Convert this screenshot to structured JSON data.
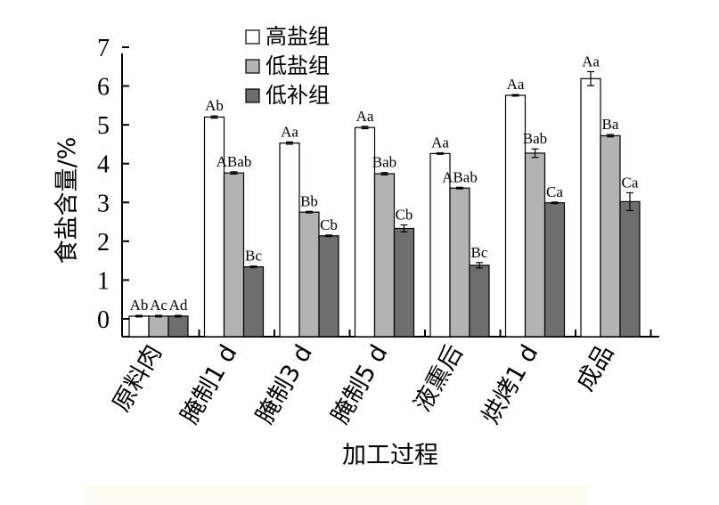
{
  "chart_data": {
    "type": "bar",
    "title": "",
    "xlabel": "加工过程",
    "ylabel": "食盐含量/%",
    "ylim": [
      0,
      7
    ],
    "yticks": [
      "0",
      "1",
      "2",
      "3",
      "4",
      "5",
      "6",
      "7"
    ],
    "categories": [
      "原料肉",
      "腌制1 d",
      "腌制3 d",
      "腌制5 d",
      "液熏后",
      "烘烤1 d",
      "成品"
    ],
    "series": [
      {
        "name": "高盐组",
        "color": "#ffffff",
        "values": [
          0.07,
          5.2,
          4.53,
          4.93,
          4.26,
          5.76,
          6.19
        ],
        "errors": [
          0.02,
          0.03,
          0.03,
          0.03,
          0.02,
          0.02,
          0.18
        ],
        "labels": [
          "Ab",
          "Ab",
          "Aa",
          "Aa",
          "Aa",
          "Aa",
          "Aa"
        ]
      },
      {
        "name": "低盐组",
        "color": "#b3b3b3",
        "values": [
          0.07,
          3.76,
          2.75,
          3.74,
          3.37,
          4.27,
          4.72
        ],
        "errors": [
          0.02,
          0.03,
          0.02,
          0.03,
          0.02,
          0.11,
          0.03
        ],
        "labels": [
          "Ac",
          "ABab",
          "Bb",
          "Bab",
          "ABab",
          "Bab",
          "Ba"
        ]
      },
      {
        "name": "低补组",
        "color": "#6e6e6e",
        "values": [
          0.07,
          1.34,
          2.14,
          2.33,
          1.38,
          2.99,
          3.02
        ],
        "errors": [
          0.02,
          0.02,
          0.02,
          0.09,
          0.07,
          0.02,
          0.23
        ],
        "labels": [
          "Ad",
          "Bc",
          "Cb",
          "Cb",
          "Bc",
          "Ca",
          "Ca"
        ]
      }
    ],
    "legend_position": "top-center",
    "grid": false
  }
}
